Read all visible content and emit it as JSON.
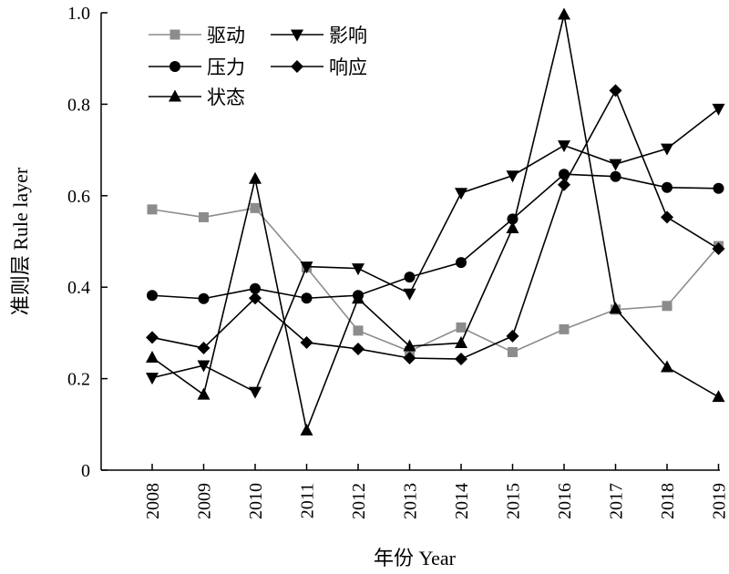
{
  "chart_data": {
    "type": "line",
    "title": "",
    "xlabel": "年份 Year",
    "ylabel": "准则层 Rule layer",
    "ylim": [
      0,
      1.0
    ],
    "yticks": [
      0,
      0.2,
      0.4,
      0.6,
      0.8,
      1.0
    ],
    "ytick_labels": [
      "0",
      "0.2",
      "0.4",
      "0.6",
      "0.8",
      "1.0"
    ],
    "categories": [
      "2008",
      "2009",
      "2010",
      "2011",
      "2012",
      "2013",
      "2014",
      "2015",
      "2016",
      "2017",
      "2018",
      "2019"
    ],
    "grid": false,
    "legend_position": "top-left",
    "series": [
      {
        "name": "驱动",
        "marker": "square",
        "color": "#8c8c8c",
        "values": [
          0.57,
          0.553,
          0.573,
          0.443,
          0.305,
          0.26,
          0.312,
          0.258,
          0.308,
          0.351,
          0.359,
          0.49
        ]
      },
      {
        "name": "压力",
        "marker": "circle",
        "color": "#000000",
        "values": [
          0.382,
          0.375,
          0.397,
          0.376,
          0.382,
          0.422,
          0.454,
          0.549,
          0.647,
          0.642,
          0.618,
          0.616
        ]
      },
      {
        "name": "状态",
        "marker": "triangle-up",
        "color": "#000000",
        "values": [
          0.246,
          0.165,
          0.637,
          0.087,
          0.375,
          0.271,
          0.278,
          0.529,
          0.996,
          0.353,
          0.225,
          0.16
        ]
      },
      {
        "name": "影响",
        "marker": "triangle-down",
        "color": "#000000",
        "values": [
          0.202,
          0.229,
          0.171,
          0.445,
          0.441,
          0.386,
          0.606,
          0.644,
          0.71,
          0.669,
          0.703,
          0.79
        ]
      },
      {
        "name": "响应",
        "marker": "diamond",
        "color": "#000000",
        "values": [
          0.29,
          0.267,
          0.376,
          0.279,
          0.265,
          0.245,
          0.243,
          0.293,
          0.624,
          0.83,
          0.553,
          0.484
        ]
      }
    ]
  }
}
